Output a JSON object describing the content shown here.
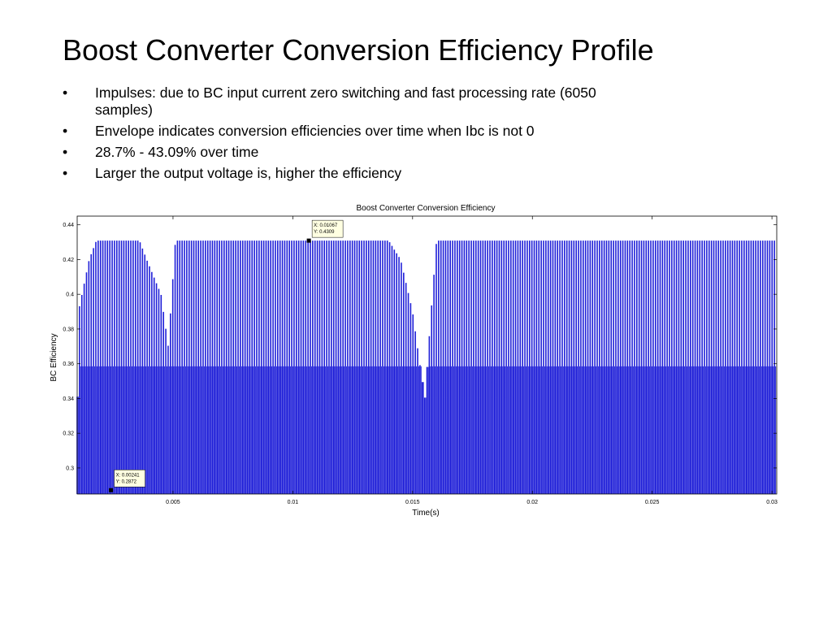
{
  "slide": {
    "title": "Boost Converter Conversion Efficiency Profile",
    "bullets": [
      {
        "symbol": "•",
        "text": "Impulses: due to BC input current zero switching and fast processing rate (6050 samples)"
      },
      {
        "symbol": "•",
        "text": "Envelope indicates conversion efficiencies over time when Ibc is not 0"
      },
      {
        "symbol": "•",
        "text": "28.7% - 43.09% over time"
      },
      {
        "symbol": "•",
        "text": "Larger the output voltage is, higher the efficiency"
      }
    ]
  },
  "colors": {
    "series": "#1f1fd8",
    "axis": "#000000"
  },
  "chart_data": {
    "type": "line",
    "title": "Boost Converter Conversion Efficiency",
    "xlabel": "Time(s)",
    "ylabel": "BC Efficiency",
    "xlim": [
      0.001,
      0.0302
    ],
    "ylim": [
      0.285,
      0.445
    ],
    "xticks": [
      0.005,
      0.01,
      0.015,
      0.02,
      0.025,
      0.03
    ],
    "xtick_labels": [
      "0.005",
      "0.01",
      "0.015",
      "0.02",
      "0.025",
      "0.03"
    ],
    "yticks": [
      0.3,
      0.32,
      0.34,
      0.36,
      0.38,
      0.4,
      0.42,
      0.44
    ],
    "ytick_labels": [
      "0.3",
      "0.32",
      "0.34",
      "0.36",
      "0.38",
      "0.4",
      "0.42",
      "0.44"
    ],
    "grid": false,
    "samples": 6050,
    "series": [
      {
        "envelope_upper": {
          "x": [
            0.001,
            0.00105,
            0.0012,
            0.0015,
            0.0018,
            0.0021,
            0.0024,
            0.0027,
            0.003,
            0.0033,
            0.0036,
            0.0039,
            0.0042,
            0.0045,
            0.0048,
            0.0051,
            0.0054,
            0.0057,
            0.006,
            0.0065,
            0.007,
            0.0075,
            0.008,
            0.0085,
            0.009,
            0.0095,
            0.01,
            0.0105,
            0.011,
            0.0115,
            0.012,
            0.0125,
            0.013,
            0.0135,
            0.014,
            0.0145,
            0.015,
            0.0155,
            0.016,
            0.0165,
            0.017,
            0.0175,
            0.018,
            0.0185,
            0.019,
            0.0195,
            0.02,
            0.0205,
            0.021,
            0.0215,
            0.022,
            0.0225,
            0.023,
            0.0235,
            0.024,
            0.0245,
            0.025,
            0.0255,
            0.026,
            0.0265,
            0.027,
            0.0275,
            0.028,
            0.0285,
            0.029,
            0.0295,
            0.03,
            0.0302
          ],
          "y": [
            0.341,
            0.39,
            0.4,
            0.42,
            0.4309,
            0.4309,
            0.4309,
            0.4309,
            0.4309,
            0.4309,
            0.4309,
            0.42,
            0.41,
            0.4,
            0.37,
            0.4309,
            0.4309,
            0.4309,
            0.4309,
            0.4309,
            0.4309,
            0.4309,
            0.4309,
            0.4309,
            0.4309,
            0.4309,
            0.4309,
            0.4309,
            0.4309,
            0.4309,
            0.4309,
            0.4309,
            0.4309,
            0.4309,
            0.4309,
            0.42,
            0.39,
            0.34,
            0.4309,
            0.4309,
            0.4309,
            0.4309,
            0.4309,
            0.4309,
            0.4309,
            0.4309,
            0.4309,
            0.4309,
            0.4309,
            0.4309,
            0.4309,
            0.4309,
            0.4309,
            0.4309,
            0.4309,
            0.4309,
            0.4309,
            0.4309,
            0.4309,
            0.4309,
            0.4309,
            0.4309,
            0.4309,
            0.4309,
            0.4309,
            0.4309,
            0.4309,
            0.4309
          ]
        },
        "impulse_floor": 0.285
      }
    ],
    "annotations": [
      {
        "x": 0.01067,
        "y": 0.4309,
        "text_lines": [
          "X: 0.01067",
          "Y: 0.4309"
        ]
      },
      {
        "x": 0.00241,
        "y": 0.2872,
        "text_lines": [
          "X: 0.00241",
          "Y: 0.2872"
        ]
      }
    ]
  }
}
